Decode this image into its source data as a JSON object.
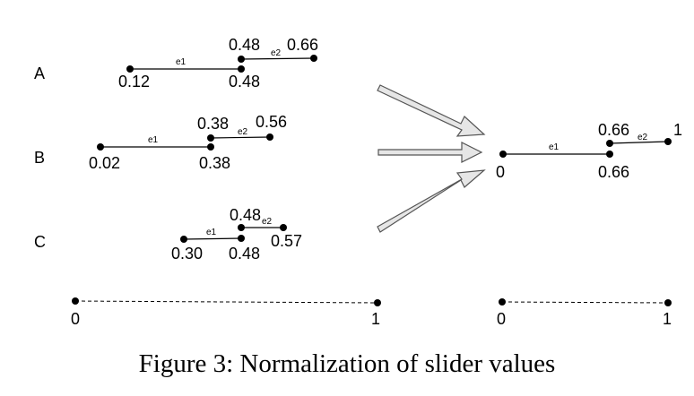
{
  "rows": [
    {
      "label": "A",
      "e1": {
        "name": "e1",
        "start": "0.12",
        "end": "0.48"
      },
      "e2": {
        "name": "e2",
        "start": "0.48",
        "end": "0.66"
      }
    },
    {
      "label": "B",
      "e1": {
        "name": "e1",
        "start": "0.02",
        "end": "0.38"
      },
      "e2": {
        "name": "e2",
        "start": "0.38",
        "end": "0.56"
      }
    },
    {
      "label": "C",
      "e1": {
        "name": "e1",
        "start": "0.30",
        "end": "0.48"
      },
      "e2": {
        "name": "e2",
        "start": "0.48",
        "end": "0.57"
      }
    }
  ],
  "normalized": {
    "e1": {
      "name": "e1",
      "start": "0",
      "end": "0.66"
    },
    "e2": {
      "name": "e2",
      "start": "0.66",
      "end": "1"
    }
  },
  "scale_left": {
    "min": "0",
    "max": "1"
  },
  "scale_right": {
    "min": "0",
    "max": "1"
  },
  "caption": "Figure 3: Normalization of slider values"
}
